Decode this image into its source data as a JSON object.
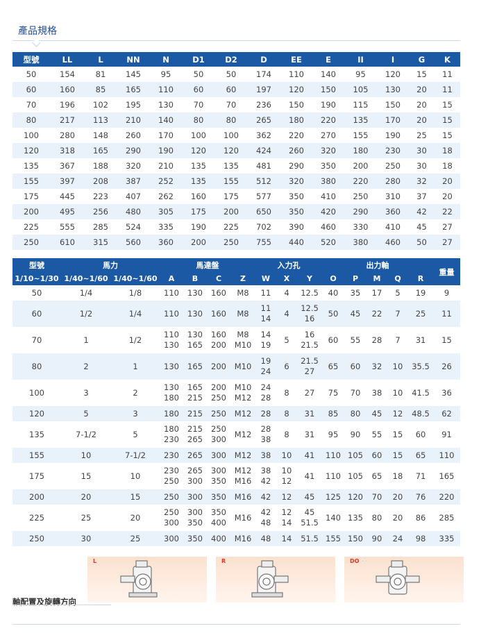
{
  "section_title": "產品規格",
  "table1": {
    "headers": [
      "型號",
      "LL",
      "L",
      "NN",
      "N",
      "D1",
      "D2",
      "D",
      "EE",
      "E",
      "II",
      "I",
      "G",
      "K"
    ],
    "rows": [
      [
        "50",
        "154",
        "81",
        "145",
        "95",
        "50",
        "50",
        "174",
        "110",
        "140",
        "95",
        "120",
        "15",
        "11"
      ],
      [
        "60",
        "160",
        "85",
        "165",
        "110",
        "60",
        "60",
        "197",
        "120",
        "150",
        "105",
        "130",
        "20",
        "11"
      ],
      [
        "70",
        "196",
        "102",
        "195",
        "130",
        "70",
        "70",
        "236",
        "150",
        "190",
        "115",
        "150",
        "20",
        "15"
      ],
      [
        "80",
        "217",
        "113",
        "210",
        "140",
        "80",
        "80",
        "265",
        "180",
        "220",
        "135",
        "170",
        "20",
        "15"
      ],
      [
        "100",
        "280",
        "148",
        "260",
        "170",
        "100",
        "100",
        "362",
        "220",
        "270",
        "155",
        "190",
        "25",
        "15"
      ],
      [
        "120",
        "318",
        "165",
        "290",
        "190",
        "120",
        "120",
        "424",
        "260",
        "320",
        "180",
        "230",
        "30",
        "18"
      ],
      [
        "135",
        "367",
        "188",
        "320",
        "210",
        "135",
        "135",
        "481",
        "290",
        "350",
        "200",
        "250",
        "30",
        "18"
      ],
      [
        "155",
        "397",
        "208",
        "387",
        "252",
        "135",
        "155",
        "512",
        "320",
        "380",
        "220",
        "280",
        "32",
        "20"
      ],
      [
        "175",
        "445",
        "223",
        "407",
        "262",
        "160",
        "175",
        "577",
        "350",
        "410",
        "250",
        "310",
        "37",
        "20"
      ],
      [
        "200",
        "495",
        "256",
        "480",
        "305",
        "175",
        "200",
        "650",
        "350",
        "420",
        "290",
        "360",
        "42",
        "22"
      ],
      [
        "225",
        "555",
        "285",
        "524",
        "335",
        "190",
        "225",
        "702",
        "390",
        "460",
        "330",
        "410",
        "45",
        "27"
      ],
      [
        "250",
        "610",
        "315",
        "560",
        "360",
        "200",
        "250",
        "755",
        "440",
        "520",
        "380",
        "460",
        "50",
        "27"
      ]
    ]
  },
  "table2": {
    "group_headers": {
      "model": "型號",
      "power": "馬力",
      "base": "馬達盤",
      "input_hole": "入力孔",
      "output_shaft": "出力軸",
      "weight": "重量"
    },
    "sub_headers": [
      "1/10~1/30",
      "1/40~1/60",
      "1/40~1/60",
      "A",
      "B",
      "C",
      "Z",
      "W",
      "X",
      "Y",
      "O",
      "P",
      "M",
      "Q",
      "R"
    ],
    "rows": [
      {
        "h": 22,
        "cells": [
          [
            "50"
          ],
          [
            "1/4"
          ],
          [
            "1/8"
          ],
          [
            "110"
          ],
          [
            "130"
          ],
          [
            "160"
          ],
          [
            "M8"
          ],
          [
            "11"
          ],
          [
            "4"
          ],
          [
            "12.5"
          ],
          [
            "40"
          ],
          [
            "35"
          ],
          [
            "17"
          ],
          [
            "5"
          ],
          [
            "19"
          ],
          [
            "9"
          ]
        ]
      },
      {
        "h": 38,
        "cells": [
          [
            "60"
          ],
          [
            "1/2"
          ],
          [
            "1/4"
          ],
          [
            "110"
          ],
          [
            "130"
          ],
          [
            "160"
          ],
          [
            "M8"
          ],
          [
            "11",
            "14"
          ],
          [
            "4"
          ],
          [
            "12.5",
            "16"
          ],
          [
            "50"
          ],
          [
            "45"
          ],
          [
            "22"
          ],
          [
            "7"
          ],
          [
            "25"
          ],
          [
            "11"
          ]
        ]
      },
      {
        "h": 38,
        "cells": [
          [
            "70"
          ],
          [
            "1"
          ],
          [
            "1/2"
          ],
          [
            "110",
            "130"
          ],
          [
            "130",
            "165"
          ],
          [
            "160",
            "200"
          ],
          [
            "M8",
            "M10"
          ],
          [
            "14",
            "19"
          ],
          [
            "5"
          ],
          [
            "16",
            "21.5"
          ],
          [
            "60"
          ],
          [
            "55"
          ],
          [
            "28"
          ],
          [
            "7"
          ],
          [
            "31"
          ],
          [
            "15"
          ]
        ]
      },
      {
        "h": 38,
        "cells": [
          [
            "80"
          ],
          [
            "2"
          ],
          [
            "1"
          ],
          [
            "130"
          ],
          [
            "165"
          ],
          [
            "200"
          ],
          [
            "M10"
          ],
          [
            "19",
            "24"
          ],
          [
            "6"
          ],
          [
            "21.5",
            "27"
          ],
          [
            "65"
          ],
          [
            "60"
          ],
          [
            "32"
          ],
          [
            "10"
          ],
          [
            "35.5"
          ],
          [
            "26"
          ]
        ]
      },
      {
        "h": 38,
        "cells": [
          [
            "100"
          ],
          [
            "3"
          ],
          [
            "2"
          ],
          [
            "130",
            "180"
          ],
          [
            "165",
            "215"
          ],
          [
            "200",
            "250"
          ],
          [
            "M10",
            "M12"
          ],
          [
            "24",
            "28"
          ],
          [
            "8"
          ],
          [
            "27"
          ],
          [
            "75"
          ],
          [
            "70"
          ],
          [
            "38"
          ],
          [
            "10"
          ],
          [
            "41.5"
          ],
          [
            "36"
          ]
        ]
      },
      {
        "h": 22,
        "cells": [
          [
            "120"
          ],
          [
            "5"
          ],
          [
            "3"
          ],
          [
            "180"
          ],
          [
            "215"
          ],
          [
            "250"
          ],
          [
            "M12"
          ],
          [
            "28"
          ],
          [
            "8"
          ],
          [
            "31"
          ],
          [
            "85"
          ],
          [
            "80"
          ],
          [
            "45"
          ],
          [
            "12"
          ],
          [
            "48.5"
          ],
          [
            "62"
          ]
        ]
      },
      {
        "h": 38,
        "cells": [
          [
            "135"
          ],
          [
            "7-1/2"
          ],
          [
            "5"
          ],
          [
            "180",
            "230"
          ],
          [
            "215",
            "265"
          ],
          [
            "250",
            "300"
          ],
          [
            "M12"
          ],
          [
            "28",
            "38"
          ],
          [
            "8"
          ],
          [
            "31"
          ],
          [
            "95"
          ],
          [
            "90"
          ],
          [
            "55"
          ],
          [
            "15"
          ],
          [
            "60"
          ],
          [
            "91"
          ]
        ]
      },
      {
        "h": 22,
        "cells": [
          [
            "155"
          ],
          [
            "10"
          ],
          [
            "7-1/2"
          ],
          [
            "230"
          ],
          [
            "265"
          ],
          [
            "300"
          ],
          [
            "M12"
          ],
          [
            "38"
          ],
          [
            "10"
          ],
          [
            "41"
          ],
          [
            "110"
          ],
          [
            "105"
          ],
          [
            "60"
          ],
          [
            "15"
          ],
          [
            "65"
          ],
          [
            "110"
          ]
        ]
      },
      {
        "h": 38,
        "cells": [
          [
            "175"
          ],
          [
            "15"
          ],
          [
            "10"
          ],
          [
            "230",
            "250"
          ],
          [
            "265",
            "300"
          ],
          [
            "300",
            "350"
          ],
          [
            "M12",
            "M16"
          ],
          [
            "38",
            "42"
          ],
          [
            "10",
            "12"
          ],
          [
            "41"
          ],
          [
            "110"
          ],
          [
            "105"
          ],
          [
            "65"
          ],
          [
            "18"
          ],
          [
            "71"
          ],
          [
            "165"
          ]
        ]
      },
      {
        "h": 22,
        "cells": [
          [
            "200"
          ],
          [
            "20"
          ],
          [
            "15"
          ],
          [
            "250"
          ],
          [
            "300"
          ],
          [
            "350"
          ],
          [
            "M16"
          ],
          [
            "42"
          ],
          [
            "12"
          ],
          [
            "45"
          ],
          [
            "125"
          ],
          [
            "120"
          ],
          [
            "70"
          ],
          [
            "20"
          ],
          [
            "76"
          ],
          [
            "220"
          ]
        ]
      },
      {
        "h": 38,
        "cells": [
          [
            "225"
          ],
          [
            "25"
          ],
          [
            "20"
          ],
          [
            "250",
            "300"
          ],
          [
            "300",
            "350"
          ],
          [
            "350",
            "400"
          ],
          [
            "M16"
          ],
          [
            "42",
            "48"
          ],
          [
            "12",
            "14"
          ],
          [
            "45",
            "51.5"
          ],
          [
            "140"
          ],
          [
            "135"
          ],
          [
            "80"
          ],
          [
            "20"
          ],
          [
            "86"
          ],
          [
            "285"
          ]
        ]
      },
      {
        "h": 22,
        "cells": [
          [
            "250"
          ],
          [
            "30"
          ],
          [
            "25"
          ],
          [
            "300"
          ],
          [
            "350"
          ],
          [
            "400"
          ],
          [
            "M16"
          ],
          [
            "48"
          ],
          [
            "14"
          ],
          [
            "51.5"
          ],
          [
            "155"
          ],
          [
            "150"
          ],
          [
            "90"
          ],
          [
            "24"
          ],
          [
            "98"
          ],
          [
            "335"
          ]
        ]
      }
    ]
  },
  "shaft_config": {
    "label": "軸配置及旋轉方向",
    "diagrams": [
      {
        "tag": "L",
        "icon": "gearbox-left-icon"
      },
      {
        "tag": "R",
        "icon": "gearbox-right-icon"
      },
      {
        "tag": "DO",
        "icon": "gearbox-double-output-icon"
      }
    ]
  },
  "colors": {
    "header_bg": "#1c59a5",
    "stripe_bg": "#e9f1fa",
    "title_color": "#1f4e99",
    "diagram_tag": "#e2332b",
    "diagram_bg": "#fbe1cf"
  }
}
